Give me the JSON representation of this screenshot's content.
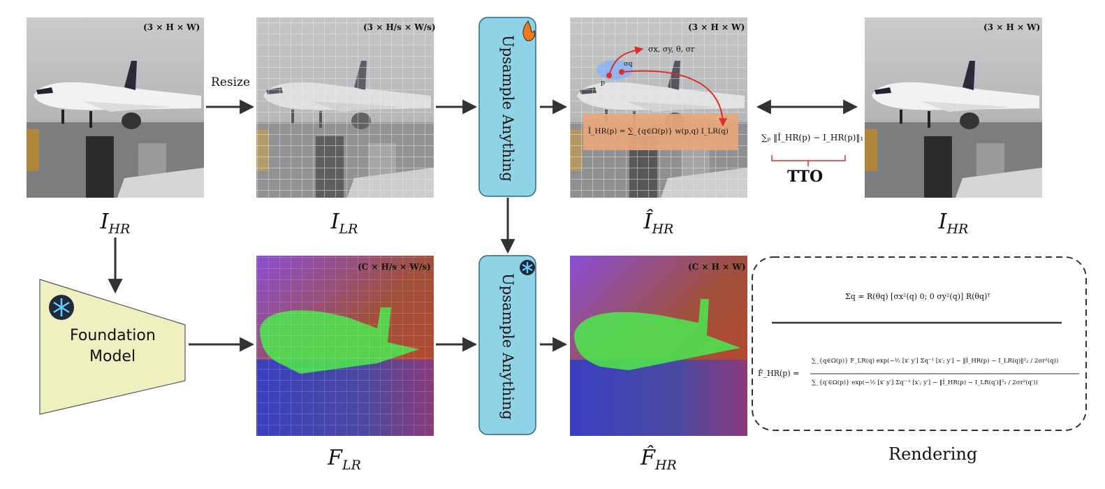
{
  "images": [
    {
      "size": "(3 × H × W)",
      "label": {
        "base": "I",
        "sub": "HR"
      }
    },
    {
      "size": "(3 × H/s × W/s)",
      "label": {
        "base": "I",
        "sub": "LR"
      }
    },
    {
      "size": "(3 × H × W)",
      "label": {
        "base": "Î",
        "sub": "HR"
      }
    },
    {
      "size": "(3 × H × W)",
      "label": {
        "base": "I",
        "sub": "HR"
      }
    },
    {
      "size": "(C × H/s × W/s)",
      "label": {
        "base": "F",
        "sub": "LR"
      }
    },
    {
      "size": "(C × H × W)",
      "label": {
        "base": "F̂",
        "sub": "HR"
      }
    }
  ],
  "resize": "Resize",
  "modules": [
    "Upsample Anything",
    "Upsample Anything"
  ],
  "foundation_model": {
    "line1": "Foundation",
    "line2": "Model"
  },
  "annotations": {
    "params": "σx, σy, θ, σr",
    "sigma": "σq",
    "point": "p",
    "kernel": "Î_HR(p) = ∑_{q∈Ω(p)} w(p,q) I_LR(q)"
  },
  "tto": {
    "loss": "∑ₚ ‖Î_HR(p) − I_HR(p)‖₁",
    "label": "TTO"
  },
  "rendering": {
    "title": "Rendering",
    "covariance": "Σq = R(θq) [σx²(q) 0; 0 σy²(q)] R(θq)ᵀ",
    "feature_lhs": "F̂_HR(p) =",
    "numerator": "∑_{q∈Ω(p)} F_LR(q) exp(−½ [x′ y′] Σq⁻¹ [x′; y′] − ‖Î_HR(p) − I_LR(q)‖²₂ / 2σr²(q))",
    "denominator": "∑_{q′∈Ω(p)} exp(−½ [x′ y′] Σq′⁻¹ [x′; y′] − ‖Î_HR(p) − I_LR(q′)‖²₂ / 2σr²(q′))"
  }
}
